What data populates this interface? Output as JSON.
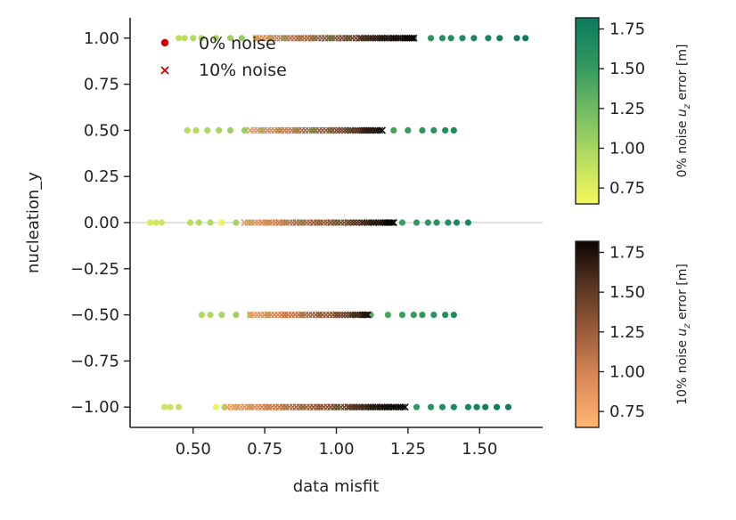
{
  "chart_data": {
    "type": "scatter",
    "xlabel": "data misfit",
    "ylabel": "nucleation_y",
    "xlim": [
      0.28,
      1.72
    ],
    "ylim": [
      -1.11,
      1.11
    ],
    "x_ticks": [
      "0.50",
      "0.75",
      "1.00",
      "1.25",
      "1.50"
    ],
    "x_tick_values": [
      0.5,
      0.75,
      1.0,
      1.25,
      1.5
    ],
    "y_ticks": [
      "1.00",
      "0.75",
      "0.50",
      "0.25",
      "0.00",
      "−0.25",
      "−0.50",
      "−0.75",
      "−1.00"
    ],
    "y_tick_values": [
      1.0,
      0.75,
      0.5,
      0.25,
      0.0,
      -0.25,
      -0.5,
      -0.75,
      -1.0
    ],
    "reference_line_y": 0.0,
    "legend": {
      "placement": "upper-left",
      "entries": [
        {
          "label": "0% noise",
          "marker": "circle",
          "color": "#cc0000"
        },
        {
          "label": "10% noise",
          "marker": "x",
          "color": "#cc0000"
        }
      ]
    },
    "colorbars": [
      {
        "name": "0% noise",
        "label": "0% noise  $u_z$ error [m]",
        "label_plain": "0% noise",
        "label_var": "u",
        "label_sub": "z",
        "label_rest": " error [m]",
        "range": [
          0.65,
          1.82
        ],
        "ticks": [
          "1.75",
          "1.50",
          "1.25",
          "1.00",
          "0.75"
        ],
        "tick_values": [
          1.75,
          1.5,
          1.25,
          1.0,
          0.75
        ],
        "colors": [
          "#f6f85c",
          "#b5dc60",
          "#72bc62",
          "#2f985f",
          "#0a7a5f"
        ]
      },
      {
        "name": "10% noise",
        "label": "10% noise  $u_z$ error [m]",
        "label_plain": "10% noise",
        "label_var": "u",
        "label_sub": "z",
        "label_rest": " error [m]",
        "range": [
          0.65,
          1.82
        ],
        "ticks": [
          "1.75",
          "1.50",
          "1.25",
          "1.00",
          "0.75"
        ],
        "tick_values": [
          1.75,
          1.5,
          1.25,
          1.0,
          0.75
        ],
        "colors": [
          "#ffb772",
          "#e08a58",
          "#a05f3c",
          "#5c3722",
          "#0a0502"
        ]
      }
    ],
    "series": [
      {
        "name": "0% noise",
        "marker": "circle",
        "colorbar": 0,
        "points": [
          [
            0.45,
            1.0,
            0.9
          ],
          [
            0.47,
            1.0,
            0.92
          ],
          [
            0.5,
            1.0,
            0.95
          ],
          [
            0.53,
            1.0,
            0.97
          ],
          [
            0.58,
            1.0,
            1.0
          ],
          [
            0.63,
            1.0,
            1.03
          ],
          [
            0.67,
            1.0,
            1.06
          ],
          [
            0.72,
            1.0,
            1.09
          ],
          [
            0.77,
            1.0,
            1.12
          ],
          [
            0.82,
            1.0,
            1.15
          ],
          [
            0.87,
            1.0,
            1.18
          ],
          [
            0.92,
            1.0,
            1.21
          ],
          [
            0.98,
            1.0,
            1.25
          ],
          [
            1.04,
            1.0,
            1.3
          ],
          [
            1.1,
            1.0,
            1.35
          ],
          [
            1.16,
            1.0,
            1.4
          ],
          [
            1.2,
            1.0,
            1.45
          ],
          [
            1.27,
            1.0,
            1.52
          ],
          [
            1.33,
            1.0,
            1.56
          ],
          [
            1.37,
            1.0,
            1.6
          ],
          [
            1.4,
            1.0,
            1.62
          ],
          [
            1.44,
            1.0,
            1.65
          ],
          [
            1.48,
            1.0,
            1.68
          ],
          [
            1.53,
            1.0,
            1.72
          ],
          [
            1.57,
            1.0,
            1.76
          ],
          [
            1.63,
            1.0,
            1.8
          ],
          [
            1.66,
            1.0,
            1.82
          ],
          [
            0.48,
            0.5,
            0.93
          ],
          [
            0.51,
            0.5,
            0.95
          ],
          [
            0.55,
            0.5,
            0.98
          ],
          [
            0.59,
            0.5,
            1.0
          ],
          [
            0.63,
            0.5,
            1.03
          ],
          [
            0.68,
            0.5,
            1.07
          ],
          [
            0.74,
            0.5,
            1.1
          ],
          [
            0.8,
            0.5,
            1.14
          ],
          [
            0.86,
            0.5,
            1.17
          ],
          [
            0.92,
            0.5,
            1.21
          ],
          [
            0.98,
            0.5,
            1.25
          ],
          [
            1.04,
            0.5,
            1.3
          ],
          [
            1.1,
            0.5,
            1.35
          ],
          [
            1.15,
            0.5,
            1.4
          ],
          [
            1.2,
            0.5,
            1.45
          ],
          [
            1.25,
            0.5,
            1.5
          ],
          [
            1.3,
            0.5,
            1.54
          ],
          [
            1.34,
            0.5,
            1.58
          ],
          [
            1.38,
            0.5,
            1.62
          ],
          [
            1.41,
            0.5,
            1.65
          ],
          [
            0.35,
            0.0,
            0.8
          ],
          [
            0.37,
            0.0,
            0.82
          ],
          [
            0.39,
            0.0,
            0.84
          ],
          [
            0.49,
            0.0,
            0.92
          ],
          [
            0.52,
            0.0,
            0.95
          ],
          [
            0.56,
            0.0,
            0.97
          ],
          [
            0.6,
            0.0,
            0.7
          ],
          [
            0.65,
            0.0,
            1.02
          ],
          [
            0.7,
            0.0,
            1.06
          ],
          [
            0.76,
            0.0,
            1.1
          ],
          [
            0.82,
            0.0,
            1.14
          ],
          [
            0.88,
            0.0,
            1.18
          ],
          [
            0.94,
            0.0,
            1.22
          ],
          [
            1.0,
            0.0,
            1.26
          ],
          [
            1.06,
            0.0,
            1.31
          ],
          [
            1.12,
            0.0,
            1.36
          ],
          [
            1.18,
            0.0,
            1.42
          ],
          [
            1.23,
            0.0,
            1.47
          ],
          [
            1.28,
            0.0,
            1.52
          ],
          [
            1.32,
            0.0,
            1.56
          ],
          [
            1.35,
            0.0,
            1.59
          ],
          [
            1.39,
            0.0,
            1.63
          ],
          [
            1.42,
            0.0,
            1.66
          ],
          [
            1.46,
            0.0,
            1.7
          ],
          [
            0.53,
            -0.5,
            0.95
          ],
          [
            0.56,
            -0.5,
            0.97
          ],
          [
            0.6,
            -0.5,
            1.0
          ],
          [
            0.65,
            -0.5,
            1.03
          ],
          [
            0.7,
            -0.5,
            1.07
          ],
          [
            0.76,
            -0.5,
            1.1
          ],
          [
            0.82,
            -0.5,
            1.14
          ],
          [
            0.88,
            -0.5,
            1.18
          ],
          [
            0.94,
            -0.5,
            1.22
          ],
          [
            1.0,
            -0.5,
            1.26
          ],
          [
            1.06,
            -0.5,
            1.31
          ],
          [
            1.12,
            -0.5,
            1.36
          ],
          [
            1.18,
            -0.5,
            1.42
          ],
          [
            1.23,
            -0.5,
            1.47
          ],
          [
            1.27,
            -0.5,
            1.51
          ],
          [
            1.3,
            -0.5,
            1.54
          ],
          [
            1.34,
            -0.5,
            1.58
          ],
          [
            1.38,
            -0.5,
            1.62
          ],
          [
            1.41,
            -0.5,
            1.65
          ],
          [
            0.4,
            -1.0,
            0.84
          ],
          [
            0.42,
            -1.0,
            0.86
          ],
          [
            0.45,
            -1.0,
            0.88
          ],
          [
            0.58,
            -1.0,
            0.7
          ],
          [
            0.61,
            -1.0,
            1.0
          ],
          [
            0.65,
            -1.0,
            1.03
          ],
          [
            0.7,
            -1.0,
            1.07
          ],
          [
            0.76,
            -1.0,
            1.1
          ],
          [
            0.82,
            -1.0,
            1.14
          ],
          [
            0.88,
            -1.0,
            1.18
          ],
          [
            0.94,
            -1.0,
            1.22
          ],
          [
            1.0,
            -1.0,
            1.26
          ],
          [
            1.06,
            -1.0,
            1.31
          ],
          [
            1.12,
            -1.0,
            1.36
          ],
          [
            1.18,
            -1.0,
            1.42
          ],
          [
            1.23,
            -1.0,
            1.47
          ],
          [
            1.28,
            -1.0,
            1.52
          ],
          [
            1.33,
            -1.0,
            1.57
          ],
          [
            1.37,
            -1.0,
            1.61
          ],
          [
            1.41,
            -1.0,
            1.65
          ],
          [
            1.46,
            -1.0,
            1.7
          ],
          [
            1.49,
            -1.0,
            1.72
          ],
          [
            1.52,
            -1.0,
            1.75
          ],
          [
            1.56,
            -1.0,
            1.78
          ],
          [
            1.6,
            -1.0,
            1.8
          ]
        ]
      },
      {
        "name": "10% noise",
        "marker": "x",
        "colorbar": 1,
        "points": [
          [
            0.72,
            1.0,
            0.9
          ],
          [
            0.78,
            1.0,
            1.0
          ],
          [
            0.84,
            1.0,
            1.1
          ],
          [
            0.9,
            1.0,
            1.2
          ],
          [
            0.96,
            1.0,
            1.3
          ],
          [
            1.02,
            1.0,
            1.4
          ],
          [
            1.08,
            1.0,
            1.55
          ],
          [
            1.12,
            1.0,
            1.65
          ],
          [
            1.16,
            1.0,
            1.72
          ],
          [
            1.2,
            1.0,
            1.78
          ],
          [
            1.24,
            1.0,
            1.8
          ],
          [
            1.27,
            1.0,
            1.82
          ],
          [
            0.7,
            0.5,
            0.85
          ],
          [
            0.76,
            0.5,
            0.95
          ],
          [
            0.82,
            0.5,
            1.05
          ],
          [
            0.88,
            0.5,
            1.15
          ],
          [
            0.94,
            0.5,
            1.25
          ],
          [
            1.0,
            0.5,
            1.38
          ],
          [
            1.05,
            0.5,
            1.5
          ],
          [
            1.09,
            0.5,
            1.62
          ],
          [
            1.12,
            0.5,
            1.72
          ],
          [
            1.16,
            0.5,
            1.8
          ],
          [
            0.68,
            0.0,
            0.85
          ],
          [
            0.74,
            0.0,
            0.95
          ],
          [
            0.8,
            0.0,
            1.05
          ],
          [
            0.86,
            0.0,
            1.15
          ],
          [
            0.92,
            0.0,
            1.25
          ],
          [
            0.98,
            0.0,
            1.35
          ],
          [
            1.04,
            0.0,
            1.45
          ],
          [
            1.09,
            0.0,
            1.6
          ],
          [
            1.13,
            0.0,
            1.7
          ],
          [
            1.17,
            0.0,
            1.8
          ],
          [
            1.2,
            0.0,
            1.82
          ],
          [
            0.7,
            -0.5,
            0.85
          ],
          [
            0.76,
            -0.5,
            0.95
          ],
          [
            0.82,
            -0.5,
            1.05
          ],
          [
            0.88,
            -0.5,
            1.15
          ],
          [
            0.94,
            -0.5,
            1.28
          ],
          [
            1.0,
            -0.5,
            1.4
          ],
          [
            1.05,
            -0.5,
            1.55
          ],
          [
            1.09,
            -0.5,
            1.68
          ],
          [
            1.11,
            -0.5,
            1.76
          ],
          [
            0.62,
            -1.0,
            0.8
          ],
          [
            0.68,
            -1.0,
            0.9
          ],
          [
            0.74,
            -1.0,
            1.0
          ],
          [
            0.8,
            -1.0,
            1.1
          ],
          [
            0.86,
            -1.0,
            1.2
          ],
          [
            0.92,
            -1.0,
            1.3
          ],
          [
            0.98,
            -1.0,
            1.4
          ],
          [
            1.04,
            -1.0,
            1.5
          ],
          [
            1.08,
            -1.0,
            1.6
          ],
          [
            1.12,
            -1.0,
            1.7
          ],
          [
            1.16,
            -1.0,
            1.78
          ],
          [
            1.2,
            -1.0,
            1.82
          ],
          [
            1.24,
            -1.0,
            1.8
          ]
        ]
      }
    ]
  }
}
